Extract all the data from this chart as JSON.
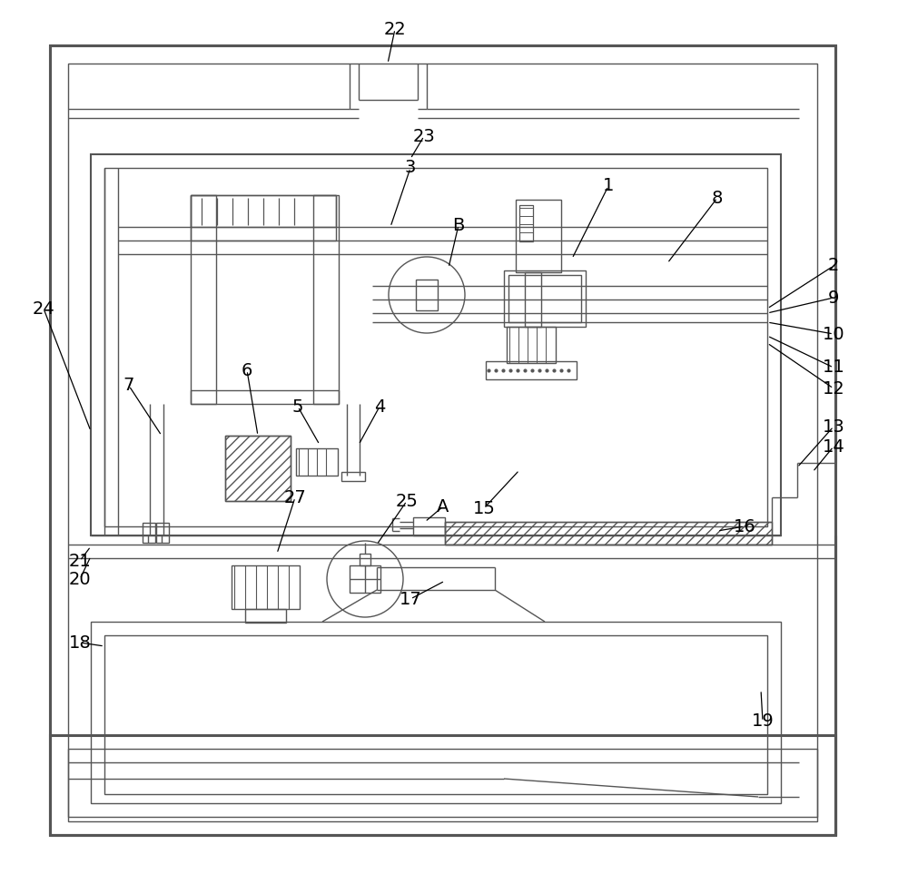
{
  "bg_color": "#ffffff",
  "lc": "#555555",
  "lw_thin": 1.0,
  "lw_med": 1.5,
  "lw_thick": 2.2
}
